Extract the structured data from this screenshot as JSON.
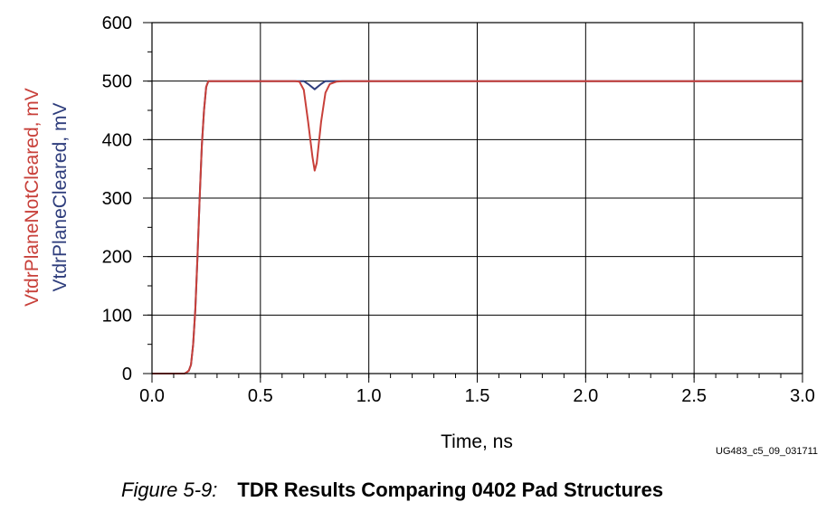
{
  "chart_data": {
    "type": "line",
    "xlabel": "Time, ns",
    "ylabels": [
      "VtdrPlaneNotCleared, mV",
      "VtdrPlaneCleared, mV"
    ],
    "xlim": [
      0.0,
      3.0
    ],
    "ylim": [
      0,
      600
    ],
    "x_ticks": [
      "0.0",
      "0.5",
      "1.0",
      "1.5",
      "2.0",
      "2.5",
      "3.0"
    ],
    "y_ticks": [
      "0",
      "100",
      "200",
      "300",
      "400",
      "500",
      "600"
    ],
    "grid": true,
    "series": [
      {
        "name": "VtdrPlaneNotCleared, mV",
        "color": "#c8403a",
        "points": [
          [
            0.0,
            0
          ],
          [
            0.15,
            0
          ],
          [
            0.16,
            2
          ],
          [
            0.17,
            5
          ],
          [
            0.18,
            15
          ],
          [
            0.19,
            50
          ],
          [
            0.2,
            110
          ],
          [
            0.21,
            200
          ],
          [
            0.22,
            300
          ],
          [
            0.23,
            390
          ],
          [
            0.24,
            450
          ],
          [
            0.25,
            490
          ],
          [
            0.26,
            500
          ],
          [
            0.66,
            500
          ],
          [
            0.68,
            499
          ],
          [
            0.7,
            485
          ],
          [
            0.72,
            430
          ],
          [
            0.74,
            370
          ],
          [
            0.75,
            347
          ],
          [
            0.76,
            360
          ],
          [
            0.78,
            430
          ],
          [
            0.8,
            480
          ],
          [
            0.82,
            495
          ],
          [
            0.85,
            499
          ],
          [
            0.88,
            500
          ],
          [
            3.0,
            500
          ]
        ]
      },
      {
        "name": "VtdrPlaneCleared, mV",
        "color": "#2e3d7c",
        "points": [
          [
            0.0,
            0
          ],
          [
            0.15,
            0
          ],
          [
            0.16,
            2
          ],
          [
            0.17,
            5
          ],
          [
            0.18,
            15
          ],
          [
            0.19,
            50
          ],
          [
            0.2,
            110
          ],
          [
            0.21,
            200
          ],
          [
            0.22,
            300
          ],
          [
            0.23,
            390
          ],
          [
            0.24,
            450
          ],
          [
            0.25,
            490
          ],
          [
            0.26,
            500
          ],
          [
            0.7,
            500
          ],
          [
            0.72,
            495
          ],
          [
            0.75,
            486
          ],
          [
            0.78,
            495
          ],
          [
            0.8,
            500
          ],
          [
            3.0,
            500
          ]
        ]
      }
    ]
  },
  "figure_id": "UG483_c5_09_031711",
  "caption": {
    "number": "Figure 5-9:",
    "title": "TDR Results Comparing 0402 Pad Structures"
  }
}
